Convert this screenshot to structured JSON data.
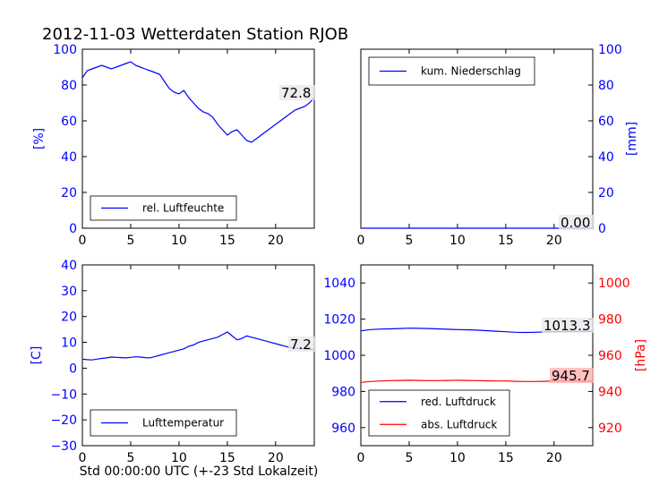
{
  "title": "2012-11-03 Wetterdaten Station RJOB",
  "xlabel": "Std 00:00:00 UTC (+-23 Std Lokalzeit)",
  "colors": {
    "primary": "#0000ff",
    "secondary": "#ff0000",
    "frame": "#000000",
    "last_bg_red": "#ffb3b3",
    "last_bg": "#e8e8e8"
  },
  "chart_data": [
    {
      "type": "line",
      "id": "humidity",
      "ylabel": "[%]",
      "xlim": [
        0,
        24
      ],
      "ylim": [
        0,
        100
      ],
      "xticks": [
        "0",
        "5",
        "10",
        "15",
        "20"
      ],
      "yticks": [
        "0",
        "20",
        "40",
        "60",
        "80",
        "100"
      ],
      "legend": "lower-center",
      "last_value": "72.8",
      "series": [
        {
          "name": "rel. Luftfeuchte",
          "x": [
            0,
            0.5,
            1,
            1.5,
            2,
            2.5,
            3,
            3.5,
            4,
            4.5,
            5,
            5.5,
            6,
            6.5,
            7,
            7.5,
            8,
            8.5,
            9,
            9.5,
            10,
            10.5,
            11,
            11.5,
            12,
            12.5,
            13,
            13.5,
            14,
            14.5,
            15,
            15.5,
            16,
            16.5,
            17,
            17.5,
            18,
            18.5,
            19,
            19.5,
            20,
            20.5,
            21,
            21.5,
            22,
            22.5,
            23,
            23.5,
            24
          ],
          "values": [
            84,
            88,
            89,
            90,
            91,
            90,
            89,
            90,
            91,
            92,
            93,
            91,
            90,
            89,
            88,
            87,
            86,
            82,
            78,
            76,
            75,
            77,
            73,
            70,
            67,
            65,
            64,
            62,
            58,
            55,
            52,
            54,
            55,
            52,
            49,
            48,
            50,
            52,
            54,
            56,
            58,
            60,
            62,
            64,
            66,
            67,
            68,
            70,
            73
          ]
        }
      ]
    },
    {
      "type": "line",
      "id": "precipitation",
      "ylabel": "[mm]",
      "xlim": [
        0,
        24
      ],
      "ylim": [
        0,
        100
      ],
      "xticks": [
        "0",
        "5",
        "10",
        "15",
        "20"
      ],
      "yticks": [
        "0",
        "20",
        "40",
        "60",
        "80",
        "100"
      ],
      "legend": "top-left",
      "last_value": "0.00",
      "series": [
        {
          "name": "kum. Niederschlag",
          "x": [
            0,
            24
          ],
          "values": [
            0,
            0
          ]
        }
      ]
    },
    {
      "type": "line",
      "id": "temperature",
      "ylabel": "[C]",
      "xlim": [
        0,
        24
      ],
      "ylim": [
        -30,
        40
      ],
      "xticks": [
        "0",
        "5",
        "10",
        "15",
        "20"
      ],
      "yticks": [
        "−30",
        "−20",
        "−10",
        "0",
        "10",
        "20",
        "30",
        "40"
      ],
      "legend": "lower-center",
      "last_value": "7.2",
      "series": [
        {
          "name": "Lufttemperatur",
          "x": [
            0,
            0.5,
            1,
            1.5,
            2,
            2.5,
            3,
            3.5,
            4,
            4.5,
            5,
            5.5,
            6,
            6.5,
            7,
            7.5,
            8,
            8.5,
            9,
            9.5,
            10,
            10.5,
            11,
            11.5,
            12,
            12.5,
            13,
            13.5,
            14,
            14.5,
            15,
            15.5,
            16,
            16.5,
            17,
            17.5,
            18,
            18.5,
            19,
            19.5,
            20,
            20.5,
            21,
            21.5,
            22,
            22.5,
            23,
            23.5,
            24
          ],
          "values": [
            3.5,
            3.3,
            3.2,
            3.5,
            3.8,
            4,
            4.3,
            4.2,
            4.1,
            4,
            4.2,
            4.4,
            4.3,
            4.1,
            4,
            4.5,
            5,
            5.5,
            6,
            6.5,
            7,
            7.5,
            8.5,
            9,
            10,
            10.5,
            11,
            11.5,
            12,
            13,
            14,
            12.5,
            11,
            11.5,
            12.5,
            12,
            11.5,
            11,
            10.5,
            10,
            9.5,
            9,
            8.5,
            8,
            7.8,
            7.6,
            7.4,
            7.3,
            7.2
          ]
        }
      ]
    },
    {
      "type": "line",
      "id": "pressure",
      "ylabel_right": "[hPa]",
      "xlim": [
        0,
        24
      ],
      "ylim": [
        950,
        1050
      ],
      "ylim_right": [
        910,
        1010
      ],
      "xticks": [
        "0",
        "5",
        "10",
        "15",
        "20"
      ],
      "yticks": [
        "960",
        "980",
        "1000",
        "1020",
        "1040"
      ],
      "yticks_right": [
        "920",
        "940",
        "960",
        "980",
        "1000"
      ],
      "legend": "lower-left",
      "last_values": [
        "1013.3",
        "945.7"
      ],
      "series": [
        {
          "name": "red. Luftdruck",
          "axis": "left",
          "x": [
            0,
            1,
            2,
            3,
            4,
            5,
            6,
            7,
            8,
            9,
            10,
            11,
            12,
            13,
            14,
            15,
            16,
            17,
            18,
            19,
            20,
            21,
            22,
            23,
            24
          ],
          "values": [
            1013.5,
            1014.2,
            1014.5,
            1014.6,
            1014.8,
            1015,
            1014.9,
            1014.8,
            1014.6,
            1014.4,
            1014.2,
            1014.1,
            1013.9,
            1013.6,
            1013.3,
            1013,
            1012.7,
            1012.6,
            1012.7,
            1012.9,
            1013,
            1013.1,
            1013.2,
            1013.3,
            1013.3
          ]
        },
        {
          "name": "abs. Luftdruck",
          "axis": "right",
          "x": [
            0,
            1,
            2,
            3,
            4,
            5,
            6,
            7,
            8,
            9,
            10,
            11,
            12,
            13,
            14,
            15,
            16,
            17,
            18,
            19,
            20,
            21,
            22,
            23,
            24
          ],
          "values": [
            945,
            945.5,
            945.8,
            946,
            946.1,
            946.2,
            946.1,
            946,
            946,
            946.1,
            946.2,
            946.1,
            946,
            945.9,
            945.8,
            945.8,
            945.6,
            945.5,
            945.5,
            945.6,
            945.8,
            945.9,
            945.8,
            945.7,
            945.7
          ]
        }
      ]
    }
  ]
}
